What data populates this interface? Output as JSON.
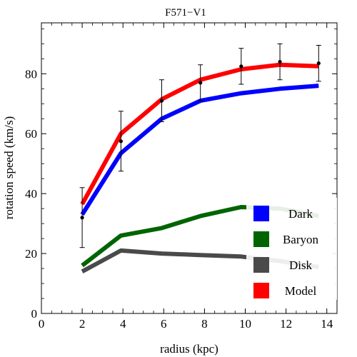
{
  "chart_data": {
    "type": "line",
    "title": "F571−V1",
    "xlabel": "radius (kpc)",
    "ylabel": "rotation speed (km/s)",
    "xlim": [
      0,
      14.5
    ],
    "ylim": [
      0,
      97
    ],
    "xticks": [
      0,
      2,
      4,
      6,
      8,
      10,
      12,
      14
    ],
    "yticks": [
      0,
      20,
      40,
      60,
      80
    ],
    "x": [
      2.0,
      3.9,
      5.9,
      7.8,
      9.8,
      11.7,
      13.6
    ],
    "series": [
      {
        "name": "Dark",
        "color": "#0000ff",
        "values": [
          33,
          53.5,
          65,
          71,
          73.5,
          75,
          76
        ]
      },
      {
        "name": "Baryon",
        "color": "#006400",
        "values": [
          16,
          26,
          28.5,
          32.5,
          35.5,
          35,
          32.5
        ]
      },
      {
        "name": "Disk",
        "color": "#4a4a4a",
        "values": [
          14,
          21,
          20,
          19.5,
          19,
          17.5,
          15.5
        ]
      },
      {
        "name": "Model",
        "color": "#ff0000",
        "values": [
          36.5,
          60,
          71.5,
          78,
          81.5,
          83,
          82.5
        ]
      }
    ],
    "observed": {
      "x": [
        2.0,
        3.9,
        5.9,
        7.8,
        9.8,
        11.7,
        13.6
      ],
      "y": [
        32,
        57.5,
        71,
        77,
        82.5,
        84,
        83.5
      ],
      "err": [
        10,
        10,
        7,
        6,
        6,
        6,
        6
      ]
    },
    "legend": {
      "position": "bottom-right",
      "entries": [
        "Dark",
        "Baryon",
        "Disk",
        "Model"
      ]
    }
  }
}
